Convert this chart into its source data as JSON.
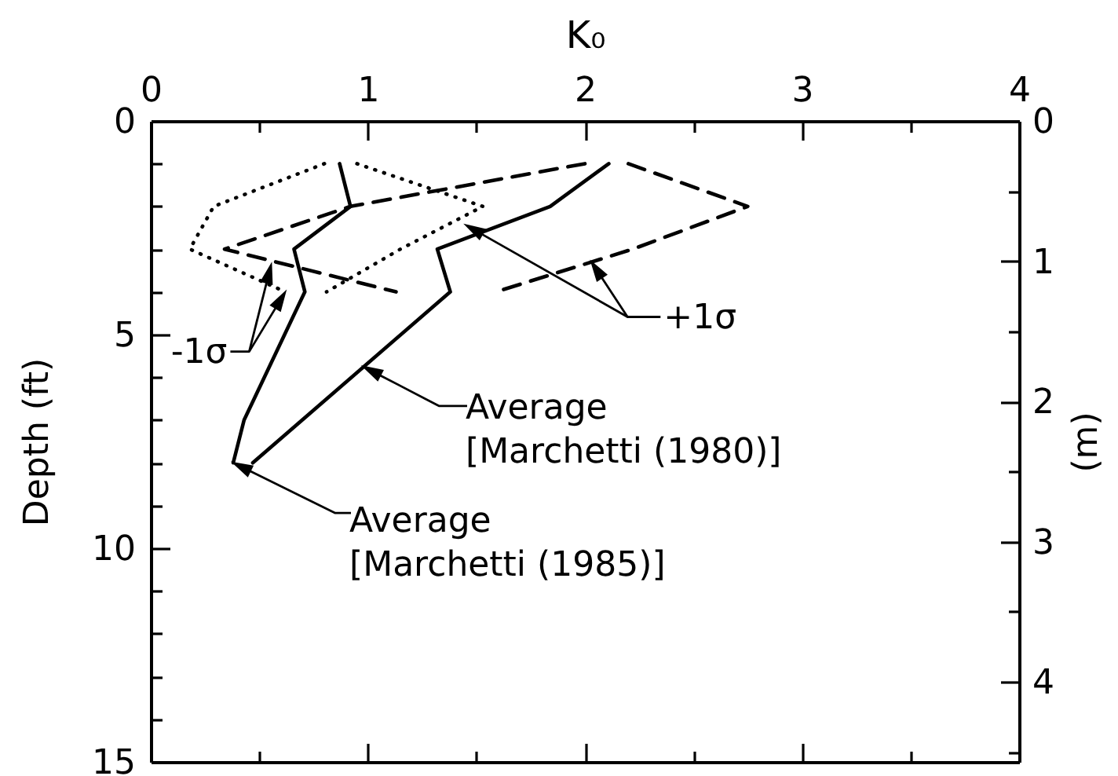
{
  "chart_data": {
    "type": "line",
    "xlabel": "K₀",
    "ylabel": "Depth (ft)",
    "y2label": "(m)",
    "xlim": [
      0,
      4
    ],
    "xticks": [
      0,
      {
        "value": 0.5,
        "label": null
      },
      1,
      {
        "value": 1.5,
        "label": null
      },
      2,
      {
        "value": 2.5,
        "label": null
      },
      3,
      {
        "value": 3.5,
        "label": null
      },
      4
    ],
    "ylim": [
      15,
      0
    ],
    "yticks": [
      0,
      {
        "value": 1,
        "label": null
      },
      {
        "value": 2,
        "label": null
      },
      {
        "value": 3,
        "label": null
      },
      {
        "value": 4,
        "label": null
      },
      5,
      {
        "value": 6,
        "label": null
      },
      {
        "value": 7,
        "label": null
      },
      {
        "value": 8,
        "label": null
      },
      {
        "value": 9,
        "label": null
      },
      10,
      {
        "value": 11,
        "label": null
      },
      {
        "value": 12,
        "label": null
      },
      {
        "value": 13,
        "label": null
      },
      {
        "value": 14,
        "label": null
      },
      15
    ],
    "y2lim": [
      4.57,
      0
    ],
    "y2ticks": [
      0,
      {
        "value": 0.5,
        "label": null
      },
      1,
      {
        "value": 1.5,
        "label": null
      },
      2,
      {
        "value": 2.5,
        "label": null
      },
      3,
      {
        "value": 3.5,
        "label": null
      },
      4,
      {
        "value": 4.5,
        "label": null
      }
    ],
    "series": [
      {
        "color": "#000000",
        "line_style": "solid",
        "x": [
          2.11,
          1.84,
          1.32,
          1.38,
          0.47
        ],
        "values": [
          1,
          2,
          3,
          4,
          8
        ]
      },
      {
        "color": "#000000",
        "line_style": "solid",
        "x": [
          0.87,
          0.92,
          0.66,
          0.71,
          0.43,
          0.38
        ],
        "values": [
          1,
          2,
          3,
          4,
          7,
          8
        ]
      },
      {
        "color": "#000000",
        "line_style": "dashed",
        "x": [
          2.2,
          2.75,
          2.22,
          1.59
        ],
        "values": [
          1,
          2,
          3,
          4
        ]
      },
      {
        "color": "#000000",
        "line_style": "dashed",
        "x": [
          2.0,
          0.92,
          0.34,
          1.13
        ],
        "values": [
          1,
          2,
          3,
          4
        ]
      },
      {
        "color": "#000000",
        "line_style": "dotted",
        "x": [
          0.95,
          1.53,
          1.15,
          0.81
        ],
        "values": [
          1,
          2,
          3,
          4
        ]
      },
      {
        "color": "#000000",
        "line_style": "dotted",
        "x": [
          0.8,
          0.29,
          0.18,
          0.62
        ],
        "values": [
          1,
          2,
          3,
          4
        ]
      }
    ],
    "annotations": [
      {
        "text": "+1σ",
        "x": 2.03,
        "y": 3.3
      },
      {
        "text": "-1σ",
        "x": 0.62,
        "y": 4
      },
      {
        "text": "Average\n[Marchetti (1980)]",
        "x": 0.98,
        "y": 5.75
      },
      "Average\n[Marchetti (1985)]"
    ]
  }
}
